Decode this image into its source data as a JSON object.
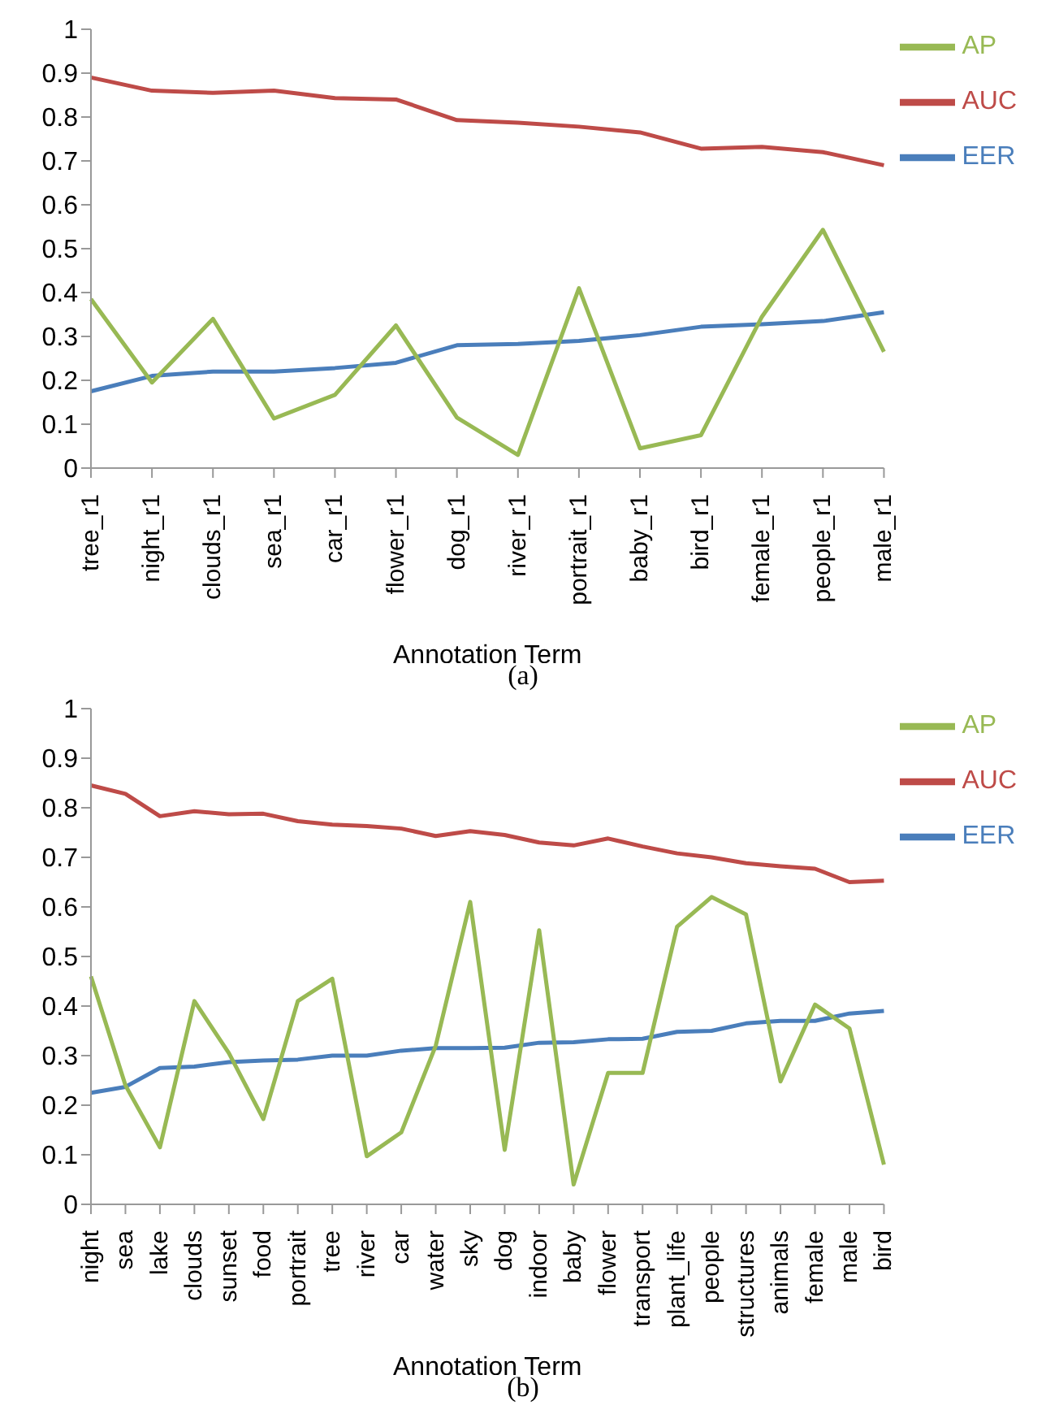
{
  "chart_data": [
    {
      "type": "line",
      "xlabel": "Annotation Term",
      "annotations": [
        "(a)"
      ],
      "categories": [
        "tree_r1",
        "night_r1",
        "clouds_r1",
        "sea_r1",
        "car_r1",
        "flower_r1",
        "dog_r1",
        "river_r1",
        "portrait_r1",
        "baby_r1",
        "bird_r1",
        "female_r1",
        "people_r1",
        "male_r1"
      ],
      "series": [
        {
          "name": "EER",
          "color": "#4a7ebb",
          "values": [
            0.175,
            0.21,
            0.22,
            0.22,
            0.228,
            0.24,
            0.28,
            0.283,
            0.29,
            0.303,
            0.322,
            0.328,
            0.335,
            0.355
          ]
        },
        {
          "name": "AUC",
          "color": "#be4b48",
          "values": [
            0.89,
            0.86,
            0.855,
            0.86,
            0.843,
            0.84,
            0.793,
            0.787,
            0.778,
            0.765,
            0.728,
            0.732,
            0.72,
            0.69
          ]
        },
        {
          "name": "AP",
          "color": "#98b954",
          "values": [
            0.385,
            0.195,
            0.34,
            0.113,
            0.167,
            0.325,
            0.115,
            0.03,
            0.41,
            0.045,
            0.075,
            0.345,
            0.543,
            0.265
          ]
        }
      ],
      "ylim": [
        0,
        1
      ],
      "yticks": [
        0,
        0.1,
        0.2,
        0.3,
        0.4,
        0.5,
        0.6,
        0.7,
        0.8,
        0.9,
        1
      ],
      "grid": false,
      "legend": "top right",
      "marker": "none",
      "line_style": "solid"
    },
    {
      "type": "line",
      "xlabel": "Annotation Term",
      "annotations": [
        "(b)"
      ],
      "categories": [
        "night",
        "sea",
        "lake",
        "clouds",
        "sunset",
        "food",
        "portrait",
        "tree",
        "river",
        "car",
        "water",
        "sky",
        "dog",
        "indoor",
        "baby",
        "flower",
        "transport",
        "plant_life",
        "people",
        "structures",
        "animals",
        "female",
        "male",
        "bird"
      ],
      "series": [
        {
          "name": "EER",
          "color": "#4a7ebb",
          "values": [
            0.225,
            0.237,
            0.275,
            0.278,
            0.287,
            0.29,
            0.292,
            0.3,
            0.3,
            0.31,
            0.315,
            0.315,
            0.316,
            0.326,
            0.327,
            0.333,
            0.334,
            0.348,
            0.35,
            0.365,
            0.37,
            0.37,
            0.385,
            0.39
          ]
        },
        {
          "name": "AUC",
          "color": "#be4b48",
          "values": [
            0.845,
            0.828,
            0.783,
            0.793,
            0.787,
            0.788,
            0.773,
            0.766,
            0.763,
            0.758,
            0.743,
            0.753,
            0.745,
            0.73,
            0.724,
            0.738,
            0.722,
            0.708,
            0.7,
            0.688,
            0.682,
            0.677,
            0.65,
            0.653
          ]
        },
        {
          "name": "AP",
          "color": "#98b954",
          "values": [
            0.46,
            0.24,
            0.115,
            0.41,
            0.305,
            0.172,
            0.41,
            0.455,
            0.097,
            0.145,
            0.32,
            0.61,
            0.11,
            0.553,
            0.04,
            0.265,
            0.265,
            0.56,
            0.62,
            0.585,
            0.248,
            0.403,
            0.355,
            0.08
          ]
        }
      ],
      "ylim": [
        0,
        1
      ],
      "yticks": [
        0,
        0.1,
        0.2,
        0.3,
        0.4,
        0.5,
        0.6,
        0.7,
        0.8,
        0.9,
        1
      ],
      "grid": false,
      "legend": "top right",
      "marker": "none",
      "line_style": "solid"
    }
  ]
}
